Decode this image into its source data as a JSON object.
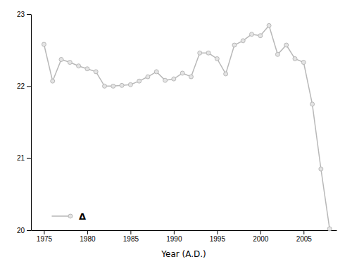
{
  "chart_data": {
    "type": "line",
    "xlabel": "Year (A.D.)",
    "x": [
      1975,
      1976,
      1977,
      1978,
      1979,
      1980,
      1981,
      1982,
      1983,
      1984,
      1985,
      1986,
      1987,
      1988,
      1989,
      1990,
      1991,
      1992,
      1993,
      1994,
      1995,
      1996,
      1997,
      1998,
      1999,
      2000,
      2001,
      2002,
      2003,
      2004,
      2005,
      2006,
      2007,
      2008
    ],
    "series": [
      {
        "name": "Δ",
        "color": "#b8b8b8",
        "marker": "circle",
        "values": [
          22.58,
          22.07,
          22.37,
          22.33,
          22.28,
          22.24,
          22.2,
          22.0,
          22.0,
          22.01,
          22.02,
          22.07,
          22.13,
          22.2,
          22.08,
          22.1,
          22.18,
          22.13,
          22.46,
          22.46,
          22.38,
          22.17,
          22.57,
          22.63,
          22.72,
          22.7,
          22.84,
          22.44,
          22.57,
          22.38,
          22.33,
          21.75,
          20.85,
          20.02
        ]
      }
    ],
    "xlim": [
      1973.5,
      2008.8
    ],
    "ylim": [
      20.0,
      23.0
    ],
    "xticks": [
      1975,
      1980,
      1985,
      1990,
      1995,
      2000,
      2005
    ],
    "yticks": [
      20,
      21,
      22,
      23
    ],
    "grid": false,
    "legend": "lower left"
  }
}
